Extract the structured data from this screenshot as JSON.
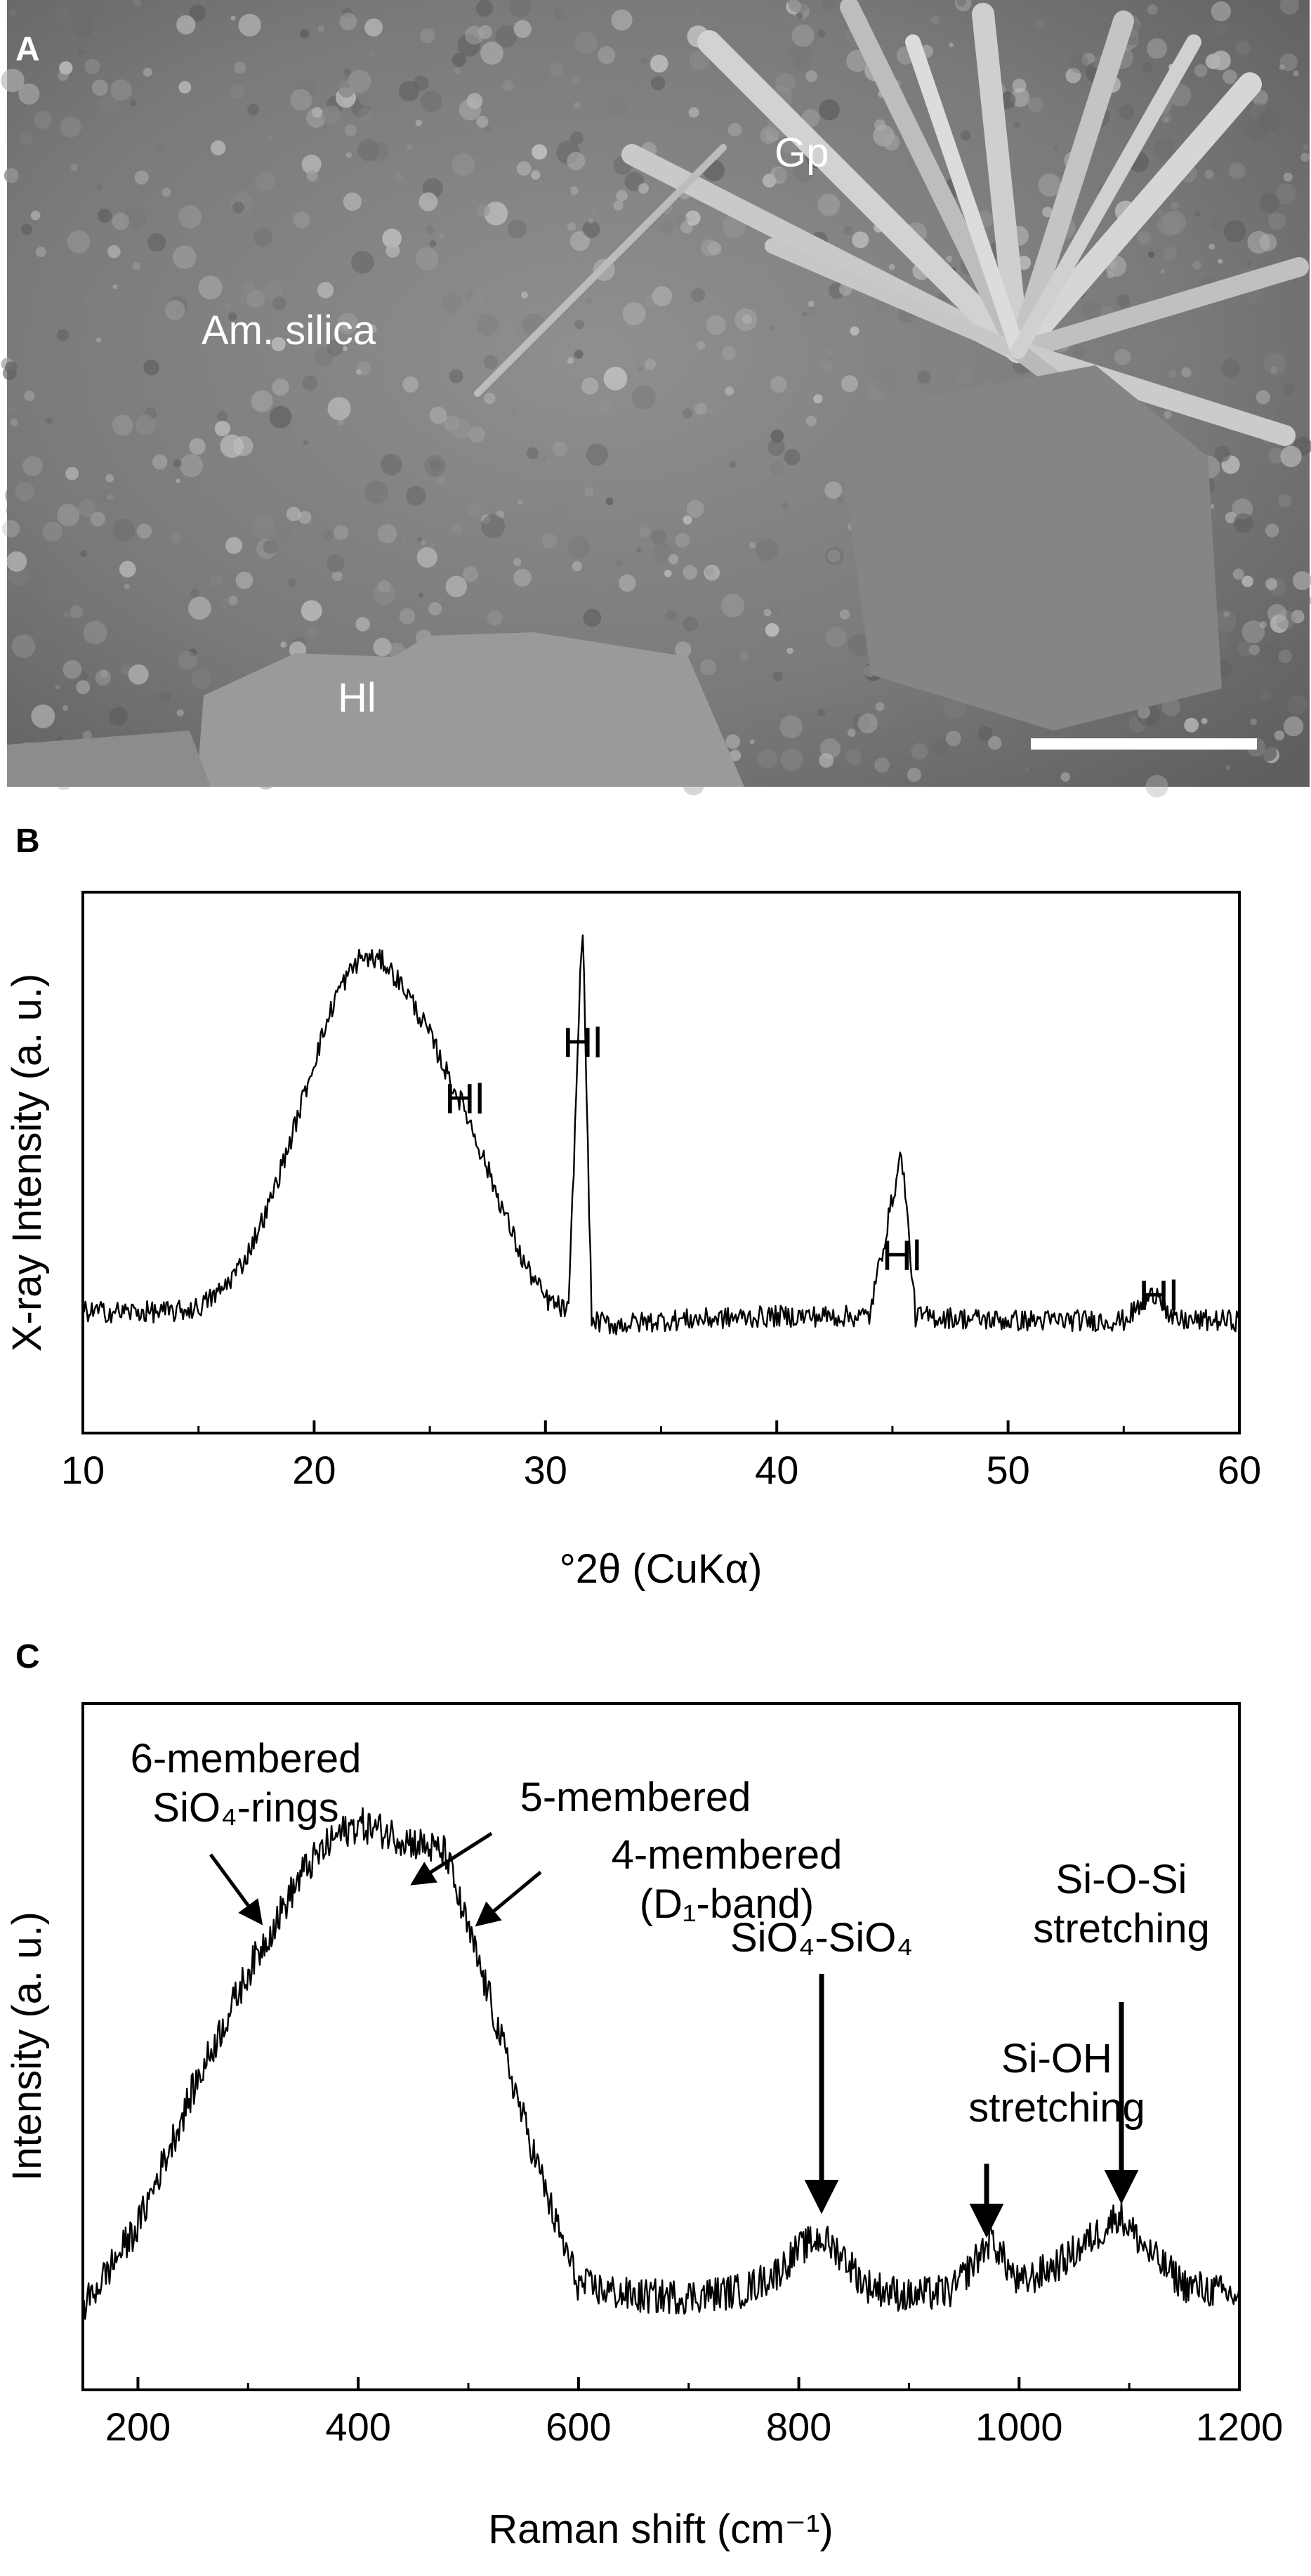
{
  "panel_a": {
    "letter": "A",
    "labels": {
      "gypsum": "Gp",
      "amorphous_silica": "Am. silica",
      "halite": "Hl"
    }
  },
  "panel_b": {
    "letter": "B"
  },
  "panel_c": {
    "letter": "C"
  },
  "chart_data": [
    {
      "type": "line",
      "panel": "B",
      "ylabel": "X-ray Intensity (a. u.)",
      "xlabel": "°2θ (CuKα)",
      "xlim": [
        10,
        60
      ],
      "xticks": [
        10,
        20,
        30,
        40,
        50,
        60
      ],
      "y_axis_tick_labels": false,
      "series": [
        {
          "x": [
            10,
            12,
            14,
            15,
            16,
            17,
            18,
            19,
            20,
            21,
            22,
            23,
            24,
            25,
            26,
            26.5,
            27,
            28,
            29,
            30,
            31,
            31.6,
            32,
            33,
            35,
            40,
            44,
            45.4,
            46,
            50,
            55,
            56.5,
            57,
            60
          ],
          "values": [
            0.08,
            0.08,
            0.08,
            0.09,
            0.13,
            0.2,
            0.32,
            0.48,
            0.66,
            0.82,
            0.9,
            0.89,
            0.82,
            0.72,
            0.6,
            0.55,
            0.48,
            0.34,
            0.2,
            0.11,
            0.08,
            1.0,
            0.06,
            0.05,
            0.06,
            0.07,
            0.07,
            0.45,
            0.07,
            0.06,
            0.06,
            0.13,
            0.06,
            0.06
          ]
        }
      ],
      "annotations": [
        {
          "text": "Hl",
          "x": 26.5
        },
        {
          "text": "Hl",
          "x": 31.6
        },
        {
          "text": "Hl",
          "x": 45.4
        },
        {
          "text": "Hl",
          "x": 56.5
        }
      ]
    },
    {
      "type": "line",
      "panel": "C",
      "ylabel": "Intensity (a. u.)",
      "xlabel": "Raman shift (cm⁻¹)",
      "xlim": [
        150,
        1200
      ],
      "xticks": [
        200,
        400,
        600,
        800,
        1000,
        1200
      ],
      "y_axis_tick_labels": false,
      "series": [
        {
          "x": [
            150,
            200,
            250,
            300,
            350,
            380,
            400,
            420,
            450,
            480,
            490,
            520,
            550,
            580,
            600,
            650,
            700,
            750,
            780,
            800,
            820,
            840,
            860,
            900,
            940,
            960,
            975,
            990,
            1000,
            1040,
            1080,
            1090,
            1120,
            1150,
            1200
          ],
          "values": [
            0.08,
            0.22,
            0.45,
            0.65,
            0.82,
            0.88,
            0.9,
            0.89,
            0.87,
            0.85,
            0.78,
            0.6,
            0.4,
            0.22,
            0.12,
            0.1,
            0.1,
            0.11,
            0.14,
            0.18,
            0.2,
            0.17,
            0.12,
            0.1,
            0.11,
            0.16,
            0.2,
            0.15,
            0.12,
            0.16,
            0.22,
            0.24,
            0.17,
            0.12,
            0.1
          ]
        }
      ],
      "annotations": [
        {
          "lines": [
            "6-membered",
            "SiO₄-rings"
          ],
          "x": 330
        },
        {
          "lines": [
            "5-membered"
          ],
          "x": 430
        },
        {
          "lines": [
            "4-membered",
            "(D₁-band)"
          ],
          "x": 490
        },
        {
          "lines": [
            "SiO₄-SiO₄"
          ],
          "x": 820
        },
        {
          "lines": [
            "Si-OH",
            "stretching"
          ],
          "x": 975
        },
        {
          "lines": [
            "Si-O-Si",
            "stretching"
          ],
          "x": 1090
        }
      ]
    }
  ]
}
